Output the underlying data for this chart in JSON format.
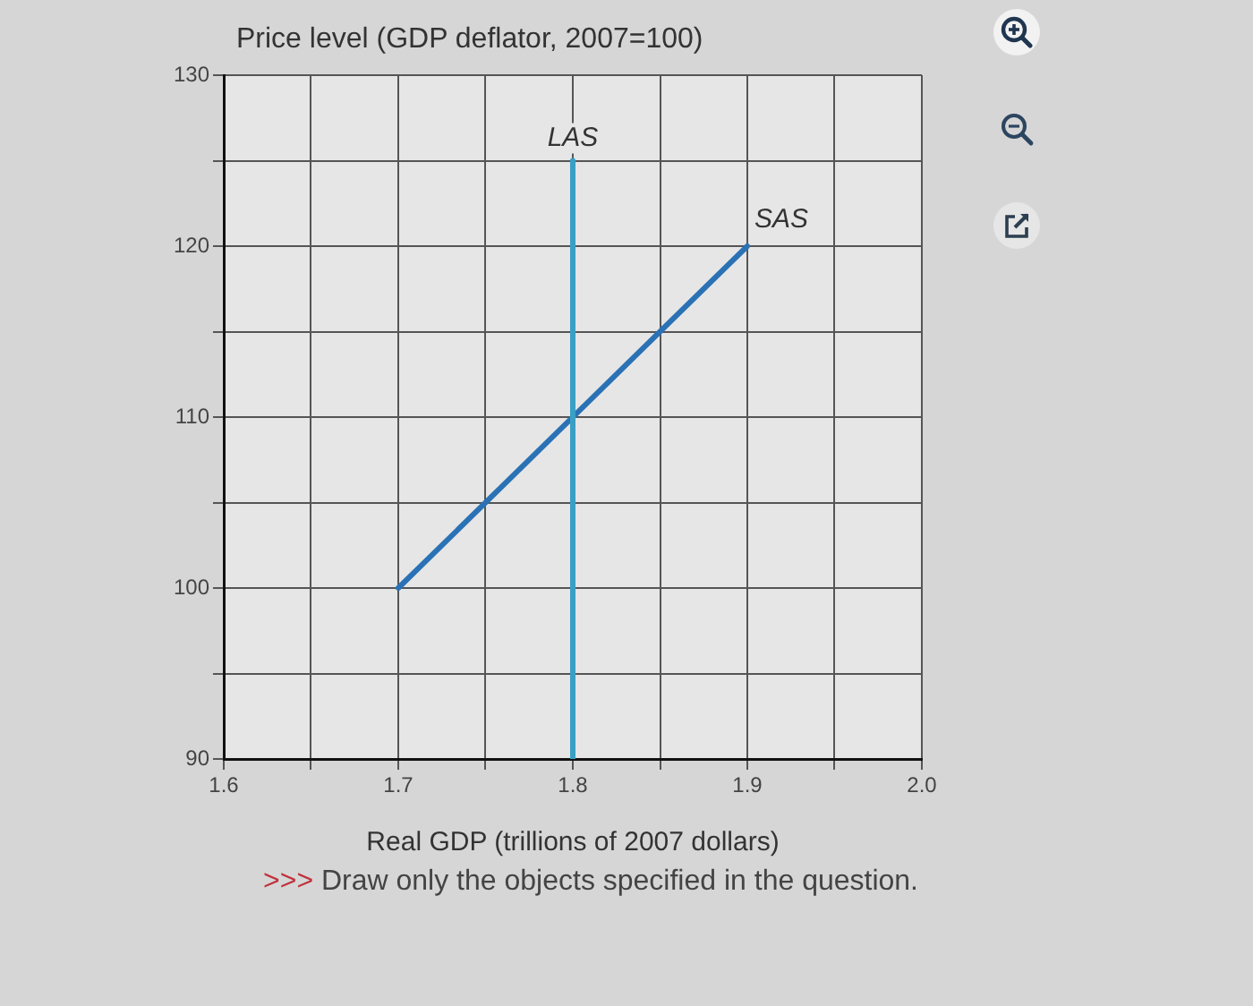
{
  "chart_data": {
    "type": "line",
    "ylabel": "Price level (GDP deflator, 2007=100)",
    "xlabel": "Real GDP (trillions of 2007 dollars)",
    "annotations": [
      ">>> Draw only the objects specified in the question."
    ],
    "series": [
      {
        "name": "LAS",
        "color": "#3a9fc4",
        "x": [
          1.8,
          1.8
        ],
        "values": [
          90,
          125
        ]
      },
      {
        "name": "SAS",
        "color": "#2a72b5",
        "x": [
          1.7,
          1.9
        ],
        "values": [
          100,
          120
        ]
      }
    ],
    "xlim": [
      1.6,
      2
    ],
    "xticks": [
      1.6,
      {
        "value": 1.65,
        "label": null
      },
      1.7,
      {
        "value": 1.75,
        "label": null
      },
      1.8,
      {
        "value": 1.85,
        "label": null
      },
      1.9,
      {
        "value": 1.95,
        "label": null
      },
      {
        "value": 2,
        "label": "2.0"
      }
    ],
    "ylim": [
      90,
      130
    ],
    "yticks": [
      90,
      {
        "value": 95,
        "label": null
      },
      100,
      {
        "value": 105,
        "label": null
      },
      110,
      {
        "value": 115,
        "label": null
      },
      120,
      {
        "value": 125,
        "label": null
      },
      130
    ],
    "grid": true,
    "marker": "none"
  }
}
